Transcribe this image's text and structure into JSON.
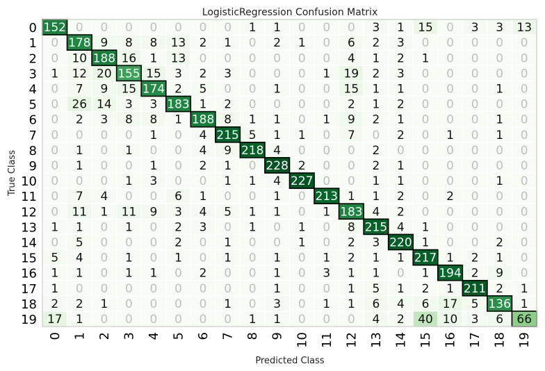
{
  "chart_data": {
    "type": "heatmap",
    "title": "LogisticRegression Confusion Matrix",
    "xlabel": "Predicted Class",
    "ylabel": "True Class",
    "classes": [
      "0",
      "1",
      "2",
      "3",
      "4",
      "5",
      "6",
      "7",
      "8",
      "9",
      "10",
      "11",
      "12",
      "13",
      "14",
      "15",
      "16",
      "17",
      "18",
      "19"
    ],
    "matrix": [
      [
        152,
        0,
        0,
        0,
        0,
        0,
        0,
        0,
        1,
        1,
        0,
        0,
        0,
        3,
        1,
        15,
        0,
        3,
        3,
        13
      ],
      [
        0,
        178,
        9,
        8,
        8,
        13,
        2,
        1,
        0,
        2,
        1,
        0,
        6,
        2,
        3,
        0,
        0,
        0,
        0,
        0
      ],
      [
        0,
        10,
        188,
        16,
        1,
        13,
        0,
        0,
        0,
        0,
        0,
        0,
        4,
        1,
        2,
        1,
        0,
        0,
        0,
        0
      ],
      [
        1,
        12,
        20,
        155,
        15,
        3,
        2,
        3,
        0,
        0,
        0,
        1,
        19,
        2,
        3,
        0,
        0,
        0,
        0,
        0
      ],
      [
        0,
        7,
        9,
        15,
        174,
        2,
        5,
        0,
        0,
        1,
        0,
        0,
        15,
        1,
        1,
        0,
        0,
        0,
        1,
        0
      ],
      [
        0,
        26,
        14,
        3,
        3,
        183,
        1,
        2,
        0,
        0,
        0,
        0,
        2,
        1,
        2,
        0,
        0,
        0,
        0,
        0
      ],
      [
        0,
        2,
        3,
        8,
        8,
        1,
        188,
        8,
        1,
        1,
        0,
        1,
        9,
        2,
        1,
        0,
        0,
        0,
        1,
        0
      ],
      [
        0,
        0,
        0,
        0,
        1,
        0,
        4,
        215,
        5,
        1,
        1,
        0,
        7,
        0,
        2,
        0,
        1,
        0,
        1,
        0
      ],
      [
        0,
        1,
        0,
        1,
        0,
        0,
        4,
        9,
        218,
        4,
        0,
        0,
        0,
        2,
        0,
        0,
        0,
        0,
        0,
        0
      ],
      [
        0,
        1,
        0,
        0,
        1,
        0,
        2,
        1,
        0,
        228,
        2,
        0,
        0,
        2,
        1,
        0,
        0,
        0,
        0,
        0
      ],
      [
        0,
        0,
        0,
        1,
        3,
        0,
        0,
        1,
        1,
        4,
        227,
        0,
        0,
        1,
        1,
        0,
        0,
        0,
        1,
        0
      ],
      [
        0,
        7,
        4,
        0,
        0,
        6,
        1,
        0,
        0,
        1,
        0,
        213,
        1,
        1,
        2,
        0,
        2,
        0,
        0,
        0
      ],
      [
        0,
        11,
        1,
        11,
        9,
        3,
        4,
        5,
        1,
        1,
        0,
        1,
        183,
        4,
        2,
        0,
        0,
        0,
        0,
        0
      ],
      [
        1,
        1,
        0,
        1,
        0,
        2,
        3,
        0,
        1,
        0,
        1,
        0,
        8,
        215,
        4,
        1,
        0,
        0,
        0,
        0
      ],
      [
        0,
        5,
        0,
        0,
        0,
        2,
        0,
        1,
        0,
        0,
        1,
        0,
        2,
        3,
        220,
        1,
        0,
        0,
        2,
        0
      ],
      [
        5,
        4,
        0,
        1,
        0,
        1,
        0,
        1,
        0,
        1,
        0,
        1,
        2,
        1,
        1,
        217,
        1,
        2,
        1,
        0
      ],
      [
        1,
        1,
        0,
        1,
        1,
        0,
        2,
        0,
        0,
        1,
        0,
        3,
        1,
        1,
        0,
        1,
        194,
        2,
        9,
        0
      ],
      [
        1,
        0,
        0,
        0,
        0,
        0,
        0,
        0,
        0,
        1,
        0,
        0,
        1,
        5,
        1,
        2,
        1,
        211,
        2,
        1
      ],
      [
        2,
        2,
        1,
        0,
        0,
        0,
        0,
        1,
        0,
        3,
        0,
        1,
        1,
        6,
        4,
        6,
        17,
        5,
        136,
        1
      ],
      [
        17,
        1,
        0,
        0,
        0,
        0,
        0,
        0,
        1,
        1,
        0,
        0,
        0,
        4,
        2,
        40,
        10,
        3,
        6,
        66
      ]
    ],
    "colormap": "Greens",
    "diagonal_outline_color": "#000000",
    "zero_text_color": "#c0c0c0",
    "grid": false,
    "legend": "none"
  }
}
